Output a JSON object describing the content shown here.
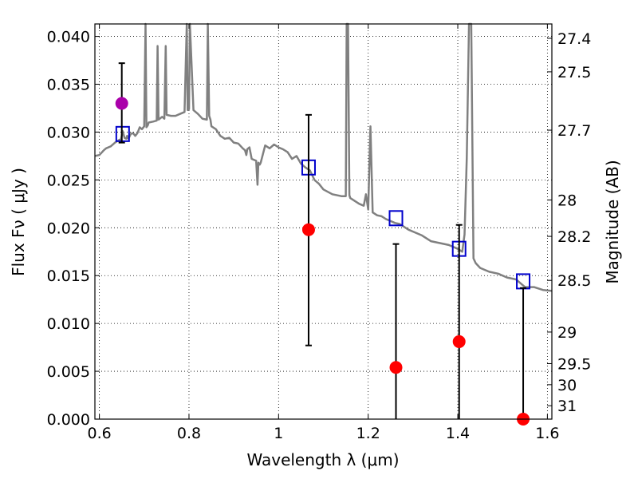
{
  "chart_data": {
    "type": "scatter",
    "title": "",
    "xlabel": "Wavelength  λ (μm)",
    "ylabel": "Flux  Fν ( μJy )",
    "y2label": "Magnitude (AB)",
    "xlim": [
      0.59,
      1.61
    ],
    "ylim": [
      0.0,
      0.0413
    ],
    "grid": true,
    "x_ticks": [
      0.6,
      0.8,
      1.0,
      1.2,
      1.4,
      1.6
    ],
    "x_tick_labels": [
      "0.6",
      "0.8",
      "1",
      "1.2",
      "1.4",
      "1.6"
    ],
    "y_ticks": [
      0.0,
      0.005,
      0.01,
      0.015,
      0.02,
      0.025,
      0.03,
      0.035,
      0.04
    ],
    "y_tick_labels": [
      "0.000",
      "0.005",
      "0.010",
      "0.015",
      "0.020",
      "0.025",
      "0.030",
      "0.035",
      "0.040"
    ],
    "right_ticks": [
      {
        "label": "27.4",
        "flux": 0.0398
      },
      {
        "label": "27.5",
        "flux": 0.0363
      },
      {
        "label": "27.7",
        "flux": 0.0302
      },
      {
        "label": "28",
        "flux": 0.0229
      },
      {
        "label": "28.2",
        "flux": 0.0191
      },
      {
        "label": "28.5",
        "flux": 0.0145
      },
      {
        "label": "29",
        "flux": 0.0091
      },
      {
        "label": "29.5",
        "flux": 0.0058
      },
      {
        "label": "30",
        "flux": 0.0036
      },
      {
        "label": "31",
        "flux": 0.0014
      }
    ],
    "series": [
      {
        "type": "line",
        "color": "#808080",
        "x": [
          0.59,
          0.6,
          0.61,
          0.615,
          0.625,
          0.635,
          0.645,
          0.648,
          0.652,
          0.656,
          0.66,
          0.662,
          0.665,
          0.67,
          0.675,
          0.68,
          0.685,
          0.69,
          0.695,
          0.7,
          0.703,
          0.705,
          0.708,
          0.71,
          0.72,
          0.728,
          0.73,
          0.732,
          0.74,
          0.745,
          0.748,
          0.75,
          0.76,
          0.77,
          0.78,
          0.79,
          0.795,
          0.797,
          0.8,
          0.802,
          0.81,
          0.82,
          0.83,
          0.84,
          0.842,
          0.845,
          0.848,
          0.85,
          0.86,
          0.87,
          0.88,
          0.89,
          0.9,
          0.91,
          0.92,
          0.925,
          0.928,
          0.93,
          0.935,
          0.94,
          0.95,
          0.953,
          0.955,
          0.958,
          0.96,
          0.97,
          0.98,
          0.99,
          1.0,
          1.01,
          1.02,
          1.03,
          1.04,
          1.05,
          1.06,
          1.07,
          1.08,
          1.09,
          1.1,
          1.12,
          1.14,
          1.15,
          1.152,
          1.155,
          1.158,
          1.16,
          1.17,
          1.18,
          1.19,
          1.195,
          1.2,
          1.205,
          1.21,
          1.22,
          1.23,
          1.24,
          1.25,
          1.26,
          1.27,
          1.28,
          1.29,
          1.3,
          1.32,
          1.34,
          1.36,
          1.38,
          1.4,
          1.41,
          1.415,
          1.42,
          1.425,
          1.43,
          1.435,
          1.44,
          1.45,
          1.47,
          1.49,
          1.51,
          1.53,
          1.54,
          1.55,
          1.57,
          1.59,
          1.61
        ],
        "y": [
          0.0275,
          0.0276,
          0.0281,
          0.0283,
          0.0285,
          0.0289,
          0.0292,
          0.0292,
          0.0301,
          0.0294,
          0.0293,
          0.0296,
          0.0293,
          0.0298,
          0.0299,
          0.0296,
          0.0299,
          0.0305,
          0.0303,
          0.0306,
          0.0413,
          0.0305,
          0.0307,
          0.031,
          0.0311,
          0.0312,
          0.039,
          0.0313,
          0.0316,
          0.0314,
          0.039,
          0.0318,
          0.0317,
          0.0317,
          0.0319,
          0.0321,
          0.0413,
          0.0323,
          0.0324,
          0.0413,
          0.0323,
          0.0319,
          0.0314,
          0.0313,
          0.0413,
          0.0317,
          0.0313,
          0.0306,
          0.0303,
          0.0296,
          0.0293,
          0.0294,
          0.0289,
          0.0288,
          0.0283,
          0.0281,
          0.0276,
          0.0282,
          0.0284,
          0.0272,
          0.027,
          0.0245,
          0.0268,
          0.0266,
          0.0268,
          0.0286,
          0.0283,
          0.0287,
          0.0284,
          0.0282,
          0.0279,
          0.0272,
          0.0275,
          0.0267,
          0.0263,
          0.026,
          0.025,
          0.0246,
          0.024,
          0.0235,
          0.0233,
          0.0233,
          0.0413,
          0.0413,
          0.0234,
          0.0231,
          0.0228,
          0.0225,
          0.0223,
          0.0235,
          0.0219,
          0.0306,
          0.0216,
          0.0213,
          0.0212,
          0.0209,
          0.0207,
          0.0205,
          0.0204,
          0.0201,
          0.0198,
          0.0196,
          0.0192,
          0.0186,
          0.0184,
          0.0182,
          0.0178,
          0.0175,
          0.0193,
          0.0273,
          0.0413,
          0.0413,
          0.0168,
          0.0163,
          0.0158,
          0.0154,
          0.0152,
          0.0148,
          0.0146,
          0.0142,
          0.0138,
          0.0138,
          0.0135,
          0.0134
        ]
      },
      {
        "type": "open-square",
        "color": "#0000cc",
        "x": [
          0.652,
          1.067,
          1.262,
          1.403,
          1.546
        ],
        "y": [
          0.0298,
          0.0263,
          0.021,
          0.0178,
          0.0144
        ]
      },
      {
        "type": "errorbar",
        "color": "#ff0000",
        "x": [
          1.067,
          1.262,
          1.403,
          1.546
        ],
        "y": [
          0.0198,
          0.0054,
          0.0081,
          0.0
        ],
        "ylow": [
          0.0077,
          0.0,
          0.0,
          0.0
        ],
        "yhigh": [
          0.0318,
          0.0183,
          0.0203,
          0.0137
        ]
      },
      {
        "type": "errorbar",
        "color": "#aa00aa",
        "x": [
          0.65
        ],
        "y": [
          0.033
        ],
        "ylow": [
          0.0289
        ],
        "yhigh": [
          0.0372
        ]
      }
    ]
  }
}
